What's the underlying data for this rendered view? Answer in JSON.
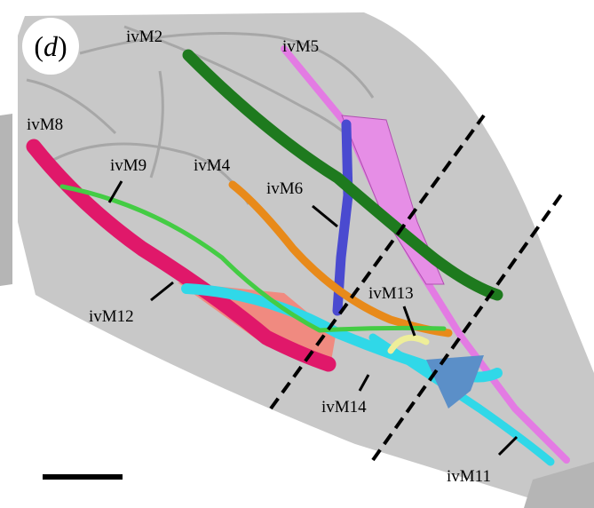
{
  "panel_label": [
    "(",
    "d",
    ")"
  ],
  "labels": [
    "ivM2",
    "ivM5",
    "ivM8",
    "ivM9",
    "ivM4",
    "ivM6",
    "ivM12",
    "ivM13",
    "ivM14",
    "ivM11"
  ]
}
